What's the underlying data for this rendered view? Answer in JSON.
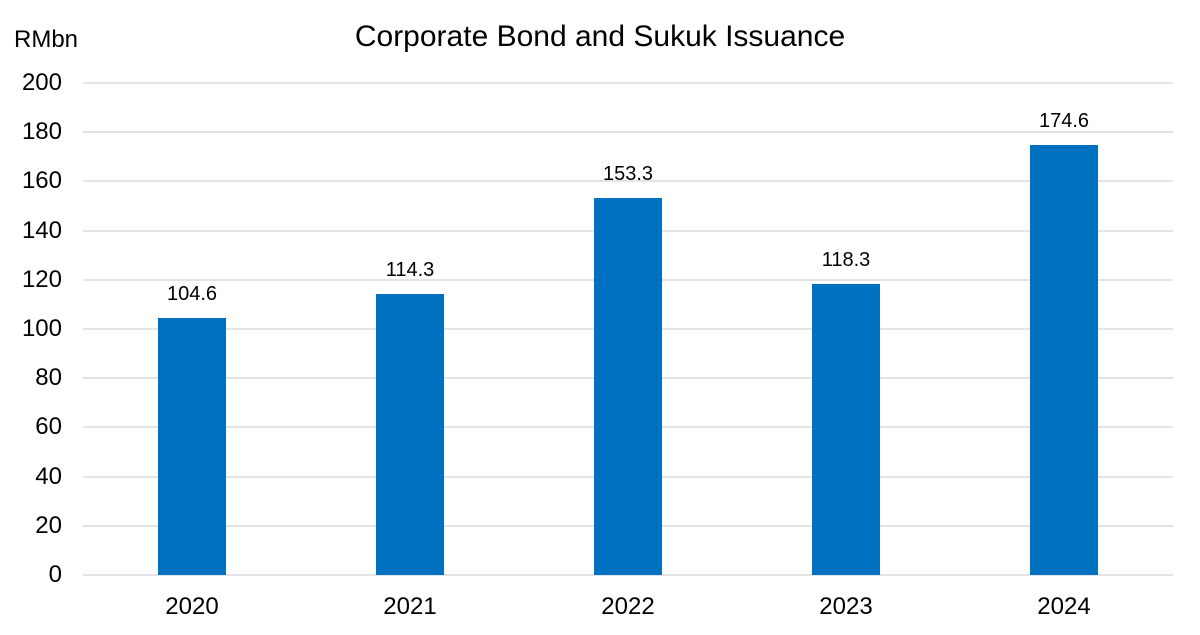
{
  "chart_data": {
    "type": "bar",
    "title": "Corporate Bond and Sukuk Issuance",
    "xlabel": "",
    "ylabel": "RMbn",
    "categories": [
      "2020",
      "2021",
      "2022",
      "2023",
      "2024"
    ],
    "values": [
      104.6,
      114.3,
      153.3,
      118.3,
      174.6
    ],
    "data_labels": [
      "104.6",
      "114.3",
      "153.3",
      "118.3",
      "174.6"
    ],
    "ylim": [
      0,
      200
    ],
    "yticks": [
      "0",
      "20",
      "40",
      "60",
      "80",
      "100",
      "120",
      "140",
      "160",
      "180",
      "200"
    ],
    "grid": true,
    "legend": null,
    "bar_color": "#0070c0"
  }
}
